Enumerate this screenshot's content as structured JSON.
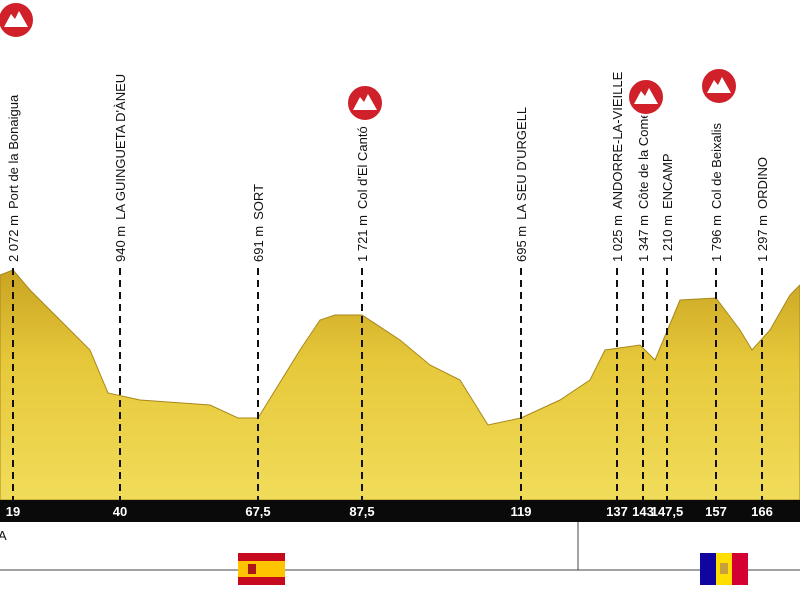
{
  "start_label_fragment": "A",
  "waypoints": [
    {
      "km": "19",
      "altitude": "2 072 m",
      "name": "Port de la Bonaigua",
      "climb": true
    },
    {
      "km": "40",
      "altitude": "940 m",
      "name": "LA GUINGUETA D'ÀNEU",
      "climb": false
    },
    {
      "km": "67,5",
      "altitude": "691 m",
      "name": "SORT",
      "climb": false
    },
    {
      "km": "87,5",
      "altitude": "1 721 m",
      "name": "Col d'El Cantó",
      "climb": true
    },
    {
      "km": "119",
      "altitude": "695 m",
      "name": "LA SEU D'URGELL",
      "climb": false
    },
    {
      "km": "137",
      "altitude": "1 025 m",
      "name": "ANDORRE-LA-VIEILLE",
      "climb": false
    },
    {
      "km": "143",
      "altitude": "1 347 m",
      "name": "Côte de la Comella",
      "climb": true
    },
    {
      "km": "147,5",
      "altitude": "1 210 m",
      "name": "ENCAMP",
      "climb": false
    },
    {
      "km": "157",
      "altitude": "1 796 m",
      "name": "Col de Beixalis",
      "climb": true
    },
    {
      "km": "166",
      "altitude": "1 297 m",
      "name": "ORDINO",
      "climb": false
    }
  ]
}
